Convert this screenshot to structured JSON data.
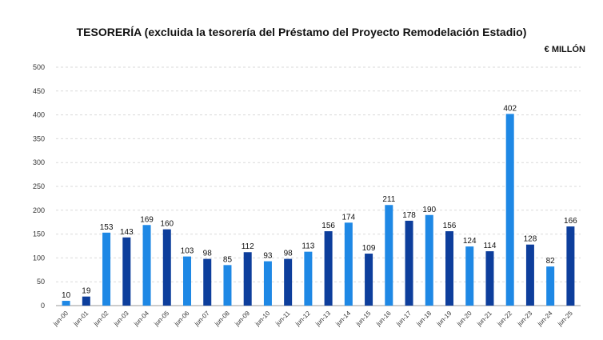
{
  "chart_data": {
    "type": "bar",
    "title": "TESORERÍA (excluida la tesorería del Préstamo del Proyecto Remodelación Estadio)",
    "unit": "€ MILLÓN",
    "xlabel": "",
    "ylabel": "",
    "ylim": [
      0,
      500
    ],
    "yticks": [
      0,
      50,
      100,
      150,
      200,
      250,
      300,
      350,
      400,
      450,
      500
    ],
    "grid": true,
    "legend": "none",
    "colors": {
      "light": "#1e88e5",
      "dark": "#0d3e9c"
    },
    "categories": [
      "jun-00",
      "jun-01",
      "jun-02",
      "jun-03",
      "jun-04",
      "jun-05",
      "jun-06",
      "jun-07",
      "jun-08",
      "jun-09",
      "jun-10",
      "jun-11",
      "jun-12",
      "jun-13",
      "jun-14",
      "jun-15",
      "jun-16",
      "jun-17",
      "jun-18",
      "jun-19",
      "jun-20",
      "jun-21",
      "jun-22",
      "jun-23",
      "jun-24",
      "jun-25"
    ],
    "values": [
      10,
      19,
      153,
      143,
      169,
      160,
      103,
      98,
      85,
      112,
      93,
      98,
      113,
      156,
      174,
      109,
      211,
      178,
      190,
      156,
      124,
      114,
      402,
      128,
      82,
      166
    ],
    "bar_colors": [
      "light",
      "dark",
      "light",
      "dark",
      "light",
      "dark",
      "light",
      "dark",
      "light",
      "dark",
      "light",
      "dark",
      "light",
      "dark",
      "light",
      "dark",
      "light",
      "dark",
      "light",
      "dark",
      "light",
      "dark",
      "light",
      "dark",
      "light",
      "dark"
    ]
  }
}
